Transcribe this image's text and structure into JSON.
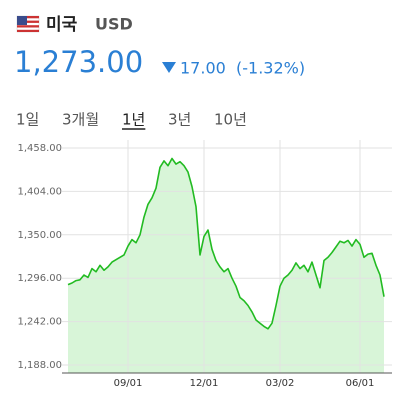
{
  "header": {
    "country": "미국",
    "currency": "USD",
    "price": "1,273.00",
    "change": "17.00",
    "change_pct": "(-1.32%)"
  },
  "tabs": [
    "1일",
    "3개월",
    "1년",
    "3년",
    "10년"
  ],
  "active_tab": 2,
  "chart_data": {
    "type": "line",
    "categories": [
      null,
      null,
      null,
      null,
      null,
      null,
      null,
      null,
      null,
      null,
      null,
      null,
      null,
      null,
      null,
      "09/01",
      null,
      null,
      null,
      null,
      null,
      null,
      null,
      null,
      null,
      null,
      null,
      null,
      null,
      null,
      null,
      null,
      null,
      null,
      "12/01",
      null,
      null,
      null,
      null,
      null,
      null,
      null,
      null,
      null,
      null,
      null,
      null,
      null,
      null,
      null,
      null,
      null,
      null,
      "03/02",
      null,
      null,
      null,
      null,
      null,
      null,
      null,
      null,
      null,
      null,
      null,
      null,
      null,
      null,
      null,
      null,
      null,
      null,
      null,
      "06/01",
      null,
      null,
      null,
      null,
      null,
      null
    ],
    "series": [
      {
        "color": "#22bb22",
        "values": [
          1288,
          1290,
          1293,
          1294,
          1300,
          1297,
          1308,
          1304,
          1312,
          1306,
          1310,
          1316,
          1319,
          1322,
          1325,
          1336,
          1344,
          1340,
          1350,
          1372,
          1388,
          1396,
          1408,
          1434,
          1442,
          1436,
          1445,
          1438,
          1441,
          1436,
          1428,
          1410,
          1385,
          1325,
          1348,
          1356,
          1332,
          1318,
          1310,
          1304,
          1308,
          1296,
          1286,
          1272,
          1268,
          1262,
          1254,
          1244,
          1240,
          1236,
          1233,
          1240,
          1262,
          1286,
          1296,
          1300,
          1306,
          1315,
          1308,
          1312,
          1304,
          1316,
          1300,
          1284,
          1318,
          1322,
          1328,
          1335,
          1342,
          1340,
          1343,
          1336,
          1344,
          1338,
          1322,
          1326,
          1327,
          1312,
          1300,
          1273
        ]
      }
    ],
    "ylim": [
      1178,
      1468
    ],
    "yticks": [
      {
        "value": 1188,
        "label": "1,188.00"
      },
      {
        "value": 1242,
        "label": "1,242.00"
      },
      {
        "value": 1296,
        "label": "1,296.00"
      },
      {
        "value": 1350,
        "label": "1,350.00"
      },
      {
        "value": 1404,
        "label": "1,404.00"
      },
      {
        "value": 1458,
        "label": "1,458.00"
      }
    ],
    "grid": true,
    "fill": "#d8f5d8"
  }
}
